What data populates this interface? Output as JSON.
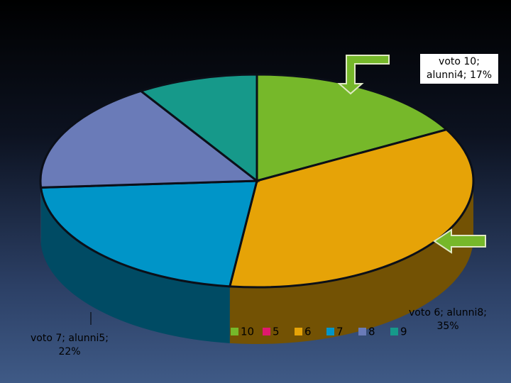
{
  "chart_data": {
    "type": "pie3d",
    "categories": [
      "10",
      "5",
      "6",
      "7",
      "8",
      "9"
    ],
    "values": [
      17,
      0,
      35,
      22,
      17,
      9
    ],
    "value_labels": [
      "voto 10; alunni4; 17%",
      null,
      "voto 6; alunni8; 35%",
      "voto 7; alunni5; 22%",
      null,
      null
    ],
    "colors": [
      "#76b82a",
      "#e0196e",
      "#e6a307",
      "#0095c8",
      "#6a7bb8",
      "#16998a"
    ],
    "legend": "bottom"
  }
}
